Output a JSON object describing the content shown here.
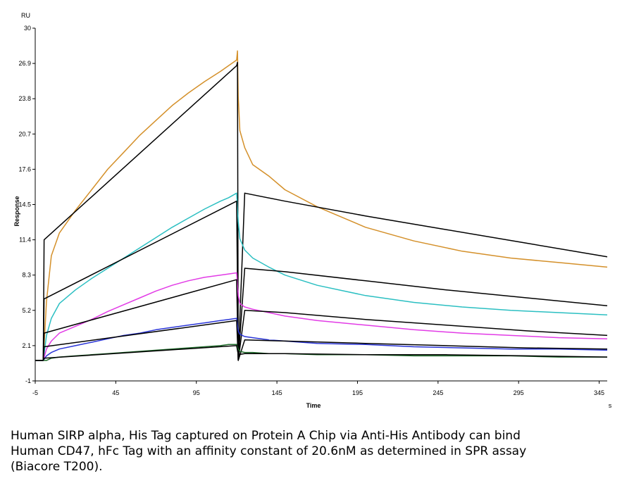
{
  "chart_data": {
    "type": "line",
    "title": "",
    "xlabel": "Time",
    "ylabel": "Response",
    "unit_label": "RU",
    "x_unit_label": "s",
    "xlim": [
      -5,
      350
    ],
    "ylim": [
      -1,
      30
    ],
    "x_ticks": [
      -5,
      45,
      95,
      145,
      195,
      245,
      295,
      345
    ],
    "y_ticks": [
      -1,
      2.1,
      5.2,
      8.3,
      11.4,
      14.5,
      17.6,
      20.7,
      23.8,
      26.9,
      30
    ],
    "grid": false,
    "legend": "none",
    "series": [
      {
        "color": "#d4902a",
        "x": [
          -5,
          0,
          2,
          5,
          10,
          20,
          30,
          40,
          50,
          60,
          70,
          80,
          90,
          100,
          110,
          115,
          120,
          120.5,
          121,
          122,
          125,
          130,
          140,
          150,
          170,
          200,
          230,
          260,
          290,
          320,
          350
        ],
        "y": [
          0.8,
          0.8,
          6.0,
          10.0,
          12.0,
          14.0,
          15.8,
          17.6,
          19.1,
          20.6,
          21.9,
          23.2,
          24.3,
          25.3,
          26.2,
          26.7,
          27.2,
          28.0,
          24.0,
          21.0,
          19.5,
          18.0,
          17.0,
          15.8,
          14.3,
          12.5,
          11.3,
          10.4,
          9.8,
          9.4,
          9.0
        ]
      },
      {
        "color": "#000000",
        "x": [
          -5,
          0,
          0.5,
          120,
          120.5,
          121,
          125,
          150,
          200,
          250,
          300,
          350
        ],
        "y": [
          0.8,
          0.8,
          11.4,
          26.7,
          27.0,
          0.8,
          15.5,
          14.8,
          13.5,
          12.3,
          11.1,
          9.9
        ]
      },
      {
        "color": "#2bbfc2",
        "x": [
          -5,
          0,
          2,
          5,
          10,
          20,
          30,
          40,
          50,
          60,
          70,
          80,
          90,
          100,
          110,
          115,
          120,
          121,
          122,
          125,
          130,
          140,
          150,
          170,
          200,
          230,
          260,
          290,
          320,
          350
        ],
        "y": [
          0.8,
          0.8,
          3.0,
          4.5,
          5.8,
          7.0,
          8.0,
          8.9,
          9.8,
          10.7,
          11.6,
          12.5,
          13.3,
          14.1,
          14.8,
          15.1,
          15.5,
          13.0,
          11.5,
          10.5,
          9.8,
          9.0,
          8.3,
          7.4,
          6.5,
          5.9,
          5.5,
          5.2,
          5.0,
          4.8
        ]
      },
      {
        "color": "#000000",
        "x": [
          -5,
          0,
          0.5,
          120,
          121,
          125,
          150,
          200,
          250,
          300,
          350
        ],
        "y": [
          0.8,
          0.8,
          6.2,
          14.8,
          0.8,
          8.9,
          8.6,
          7.8,
          7.0,
          6.3,
          5.6
        ]
      },
      {
        "color": "#e23be6",
        "x": [
          -5,
          0,
          2,
          5,
          10,
          20,
          30,
          40,
          50,
          60,
          70,
          80,
          90,
          100,
          110,
          115,
          120,
          121,
          122,
          125,
          130,
          140,
          150,
          170,
          200,
          230,
          260,
          290,
          320,
          350
        ],
        "y": [
          0.8,
          0.8,
          1.8,
          2.5,
          3.2,
          3.8,
          4.4,
          5.1,
          5.7,
          6.3,
          6.9,
          7.4,
          7.8,
          8.1,
          8.3,
          8.4,
          8.5,
          6.5,
          5.8,
          5.5,
          5.3,
          5.0,
          4.7,
          4.3,
          3.9,
          3.5,
          3.2,
          3.0,
          2.8,
          2.7
        ]
      },
      {
        "color": "#000000",
        "x": [
          -5,
          0,
          0.5,
          120,
          121,
          125,
          150,
          200,
          250,
          300,
          350
        ],
        "y": [
          0.8,
          0.8,
          3.2,
          7.9,
          0.8,
          5.2,
          5.0,
          4.4,
          3.9,
          3.4,
          3.0
        ]
      },
      {
        "color": "#2a35d8",
        "x": [
          -5,
          0,
          2,
          5,
          10,
          20,
          30,
          40,
          50,
          60,
          70,
          80,
          90,
          100,
          110,
          115,
          120,
          121,
          122,
          125,
          130,
          140,
          150,
          170,
          200,
          230,
          260,
          290,
          320,
          350
        ],
        "y": [
          0.8,
          0.8,
          1.2,
          1.5,
          1.8,
          2.1,
          2.4,
          2.7,
          3.0,
          3.2,
          3.5,
          3.7,
          3.9,
          4.1,
          4.3,
          4.4,
          4.5,
          3.4,
          3.1,
          2.9,
          2.8,
          2.6,
          2.5,
          2.3,
          2.2,
          2.0,
          1.9,
          1.8,
          1.8,
          1.7
        ]
      },
      {
        "color": "#000000",
        "x": [
          -5,
          0,
          0.5,
          120,
          121,
          125,
          150,
          200,
          250,
          300,
          350
        ],
        "y": [
          0.8,
          0.8,
          2.0,
          4.3,
          0.8,
          2.6,
          2.5,
          2.3,
          2.1,
          1.9,
          1.8
        ]
      },
      {
        "color": "#1e6b2a",
        "x": [
          -5,
          0,
          2,
          5,
          10,
          20,
          30,
          40,
          50,
          60,
          70,
          80,
          90,
          100,
          110,
          115,
          120,
          121,
          122,
          125,
          130,
          140,
          150,
          170,
          200,
          230,
          260,
          290,
          320,
          350
        ],
        "y": [
          0.8,
          0.8,
          0.8,
          1.0,
          1.1,
          1.2,
          1.3,
          1.4,
          1.5,
          1.6,
          1.7,
          1.8,
          1.9,
          2.0,
          2.1,
          2.2,
          2.2,
          1.8,
          1.6,
          1.5,
          1.5,
          1.4,
          1.4,
          1.3,
          1.3,
          1.2,
          1.2,
          1.2,
          1.1,
          1.1
        ]
      },
      {
        "color": "#000000",
        "x": [
          -5,
          0,
          0.5,
          120,
          121,
          125,
          150,
          200,
          250,
          300,
          350
        ],
        "y": [
          0.8,
          0.8,
          1.0,
          2.1,
          1.3,
          1.4,
          1.4,
          1.3,
          1.3,
          1.2,
          1.1
        ]
      }
    ]
  },
  "caption": {
    "line1": "Human SIRP alpha, His Tag captured on Protein A Chip via Anti-His Antibody can bind",
    "line2": "Human CD47, hFc Tag with an affinity constant of 20.6nM as determined in SPR assay",
    "line3": "(Biacore T200)."
  }
}
